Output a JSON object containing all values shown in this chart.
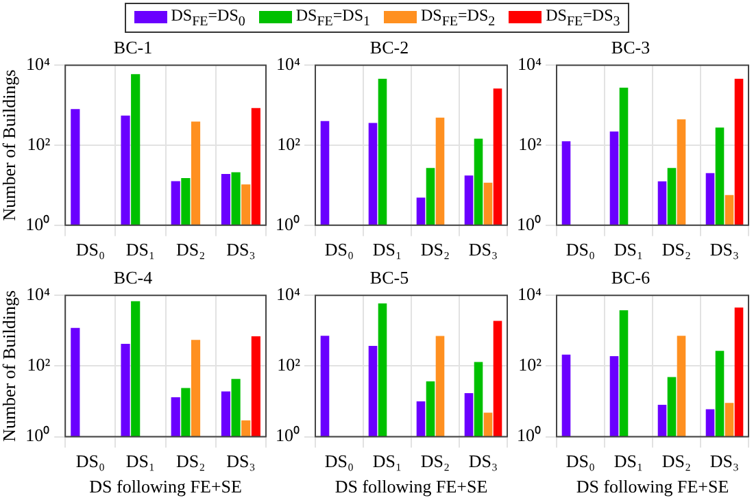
{
  "chart_data": [
    {
      "type": "bar",
      "title": "BC-1",
      "ylabel": "Number of Buildings",
      "categories": [
        "DS₀",
        "DS₁",
        "DS₂",
        "DS₃"
      ],
      "log": true,
      "ylim": [
        1,
        10000
      ],
      "yticks": [
        {
          "value": 1,
          "label": "10⁰"
        },
        {
          "value": 100,
          "label": "10²"
        },
        {
          "value": 10000,
          "label": "10⁴"
        }
      ],
      "grid": true,
      "legend": "top",
      "series": [
        {
          "name": "DS$_{FE}$=DS$_{0}$",
          "color": "#6a00ff",
          "values": [
            800,
            550,
            12.6,
            19
          ]
        },
        {
          "name": "DS$_{FE}$=DS$_{1}$",
          "color": "#00c000",
          "values": [
            null,
            6000,
            15,
            21
          ]
        },
        {
          "name": "DS$_{FE}$=DS$_{2}$",
          "color": "#ff9020",
          "values": [
            null,
            null,
            390,
            10.5
          ]
        },
        {
          "name": "DS$_{FE}$=DS$_{3}$",
          "color": "#ff0000",
          "values": [
            null,
            null,
            null,
            850
          ]
        }
      ]
    },
    {
      "type": "bar",
      "title": "BC-2",
      "categories": [
        "DS₀",
        "DS₁",
        "DS₂",
        "DS₃"
      ],
      "log": true,
      "ylim": [
        1,
        10000
      ],
      "yticks": [
        {
          "value": 1,
          "label": "10⁰"
        },
        {
          "value": 100,
          "label": "10²"
        },
        {
          "value": 10000,
          "label": "10⁴"
        }
      ],
      "grid": true,
      "series": [
        {
          "color": "#6a00ff",
          "values": [
            400,
            360,
            4.9,
            17.5
          ]
        },
        {
          "color": "#00c000",
          "values": [
            null,
            4600,
            27,
            145
          ]
        },
        {
          "color": "#ff9020",
          "values": [
            null,
            null,
            490,
            11.5
          ]
        },
        {
          "color": "#ff0000",
          "values": [
            null,
            null,
            null,
            2600
          ]
        }
      ]
    },
    {
      "type": "bar",
      "title": "BC-3",
      "categories": [
        "DS₀",
        "DS₁",
        "DS₂",
        "DS₃"
      ],
      "log": true,
      "ylim": [
        1,
        10000
      ],
      "yticks": [
        {
          "value": 1,
          "label": "10⁰"
        },
        {
          "value": 100,
          "label": "10²"
        },
        {
          "value": 10000,
          "label": "10⁴"
        }
      ],
      "grid": true,
      "series": [
        {
          "color": "#6a00ff",
          "values": [
            125,
            220,
            12.5,
            20
          ]
        },
        {
          "color": "#00c000",
          "values": [
            null,
            2750,
            27,
            275
          ]
        },
        {
          "color": "#ff9020",
          "values": [
            null,
            null,
            445,
            5.7
          ]
        },
        {
          "color": "#ff0000",
          "values": [
            null,
            null,
            null,
            4600
          ]
        }
      ]
    },
    {
      "type": "bar",
      "title": "BC-4",
      "ylabel": "Number of Buildings",
      "xlabel": "DS following FE+SE",
      "categories": [
        "DS₀",
        "DS₁",
        "DS₂",
        "DS₃"
      ],
      "log": true,
      "ylim": [
        1,
        10000
      ],
      "yticks": [
        {
          "value": 1,
          "label": "10⁰"
        },
        {
          "value": 100,
          "label": "10²"
        },
        {
          "value": 10000,
          "label": "10⁴"
        }
      ],
      "grid": true,
      "series": [
        {
          "color": "#6a00ff",
          "values": [
            1200,
            425,
            13,
            19
          ]
        },
        {
          "color": "#00c000",
          "values": [
            null,
            6800,
            24,
            43
          ]
        },
        {
          "color": "#ff9020",
          "values": [
            null,
            null,
            550,
            2.9
          ]
        },
        {
          "color": "#ff0000",
          "values": [
            null,
            null,
            null,
            690
          ]
        }
      ]
    },
    {
      "type": "bar",
      "title": "BC-5",
      "xlabel": "DS following FE+SE",
      "categories": [
        "DS₀",
        "DS₁",
        "DS₂",
        "DS₃"
      ],
      "log": true,
      "ylim": [
        1,
        10000
      ],
      "yticks": [
        {
          "value": 1,
          "label": "10⁰"
        },
        {
          "value": 100,
          "label": "10²"
        },
        {
          "value": 10000,
          "label": "10⁴"
        }
      ],
      "grid": true,
      "series": [
        {
          "color": "#6a00ff",
          "values": [
            720,
            370,
            10,
            17
          ]
        },
        {
          "color": "#00c000",
          "values": [
            null,
            5900,
            37,
            130
          ]
        },
        {
          "color": "#ff9020",
          "values": [
            null,
            null,
            710,
            4.8
          ]
        },
        {
          "color": "#ff0000",
          "values": [
            null,
            null,
            null,
            1900
          ]
        }
      ]
    },
    {
      "type": "bar",
      "title": "BC-6",
      "xlabel": "DS following FE+SE",
      "categories": [
        "DS₀",
        "DS₁",
        "DS₂",
        "DS₃"
      ],
      "log": true,
      "ylim": [
        1,
        10000
      ],
      "yticks": [
        {
          "value": 1,
          "label": "10⁰"
        },
        {
          "value": 100,
          "label": "10²"
        },
        {
          "value": 10000,
          "label": "10⁴"
        }
      ],
      "grid": true,
      "series": [
        {
          "color": "#6a00ff",
          "values": [
            210,
            190,
            8,
            6
          ]
        },
        {
          "color": "#00c000",
          "values": [
            null,
            3800,
            49,
            270
          ]
        },
        {
          "color": "#ff9020",
          "values": [
            null,
            null,
            720,
            9
          ]
        },
        {
          "color": "#ff0000",
          "values": [
            null,
            null,
            null,
            4500
          ]
        }
      ]
    }
  ]
}
